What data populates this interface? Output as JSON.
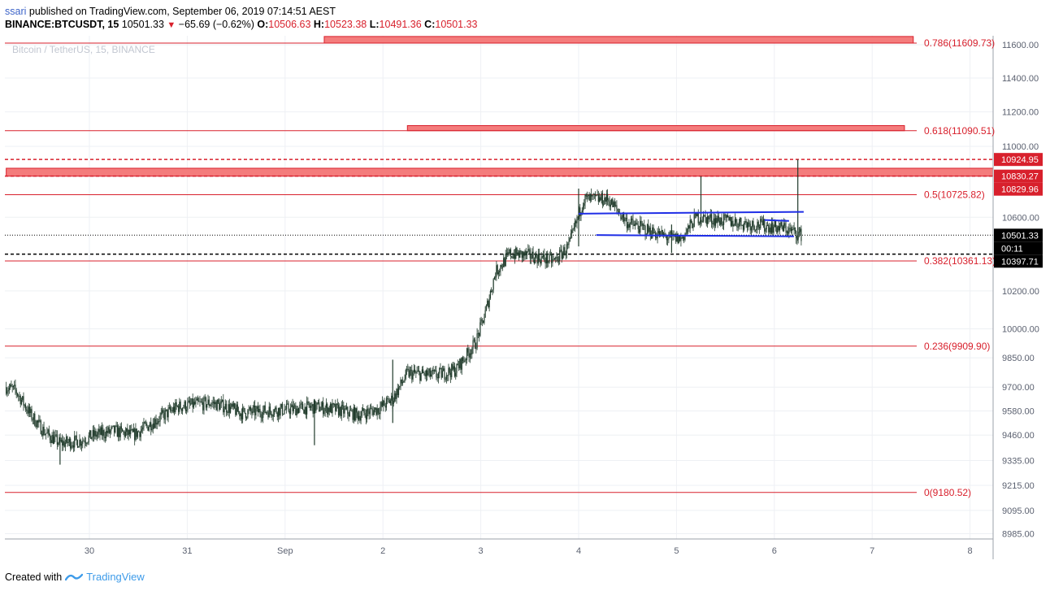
{
  "header": {
    "author": "ssari",
    "published_text": "published on TradingView.com, September 06, 2019 07:14:51 AEST",
    "symbol": "BINANCE:BTCUSDT, 15",
    "last": "10501.33",
    "change": "−65.69 (−0.62%)",
    "o_label": "O:",
    "o_value": "10506.63",
    "h_label": "H:",
    "h_value": "10523.38",
    "l_label": "L:",
    "l_value": "10491.36",
    "c_label": "C:",
    "c_value": "10501.33"
  },
  "watermark": "Bitcoin / TetherUS, 15, BINANCE",
  "footer": {
    "created_with": "Created with",
    "brand": "TradingView"
  },
  "colors": {
    "fib_line": "#d8202c",
    "zone_fill": "#f47c7c",
    "trend_line": "#1f2ee6",
    "candle": "#1f3a2a",
    "axis_text": "#5b6170",
    "grid": "#eef0f4"
  },
  "chart_data": {
    "type": "candlestick",
    "symbol": "BTCUSDT",
    "interval": "15",
    "ylim": [
      8900,
      11680
    ],
    "x_ticks": [
      {
        "label": "30",
        "day": 0
      },
      {
        "label": "31",
        "day": 1
      },
      {
        "label": "Sep",
        "day": 2
      },
      {
        "label": "2",
        "day": 3
      },
      {
        "label": "3",
        "day": 4
      },
      {
        "label": "4",
        "day": 5
      },
      {
        "label": "5",
        "day": 6
      },
      {
        "label": "6",
        "day": 7
      },
      {
        "label": "7",
        "day": 8
      },
      {
        "label": "8",
        "day": 9
      }
    ],
    "y_ticks": [
      11600,
      11400,
      11200,
      11000,
      10600,
      10200,
      10000,
      9850,
      9700,
      9580,
      9460,
      9335,
      9215,
      9095,
      8985
    ],
    "y_tick_labels": [
      "11600.00",
      "11400.00",
      "11200.00",
      "11000.00",
      "10600.00",
      "10200.00",
      "10000.00",
      "9850.00",
      "9700.00",
      "9580.00",
      "9460.00",
      "9335.00",
      "9215.00",
      "9095.00",
      "8985.00"
    ],
    "fib_levels": [
      {
        "label": "0.786(11609.73)",
        "value": 11609.73
      },
      {
        "label": "0.618(11090.51)",
        "value": 11090.51
      },
      {
        "label": "0.5(10725.82)",
        "value": 10725.82
      },
      {
        "label": "0.382(10361.13)",
        "value": 10361.13
      },
      {
        "label": "0.236(9909.90)",
        "value": 9909.9
      },
      {
        "label": "0(9180.52)",
        "value": 9180.52
      }
    ],
    "price_tags": [
      {
        "label": "10924.95",
        "value": 10924.95,
        "bg": "#d8202c"
      },
      {
        "label": "10830.27",
        "value": 10830.27,
        "bg": "#d8202c"
      },
      {
        "label": "10829.96",
        "value": 10829.96,
        "bg": "#d8202c"
      },
      {
        "label": "10501.33",
        "value": 10501.33,
        "bg": "#000000"
      },
      {
        "label": "00:11",
        "value": 10440,
        "bg": "#000000"
      },
      {
        "label": "10397.71",
        "value": 10397.71,
        "bg": "#000000"
      }
    ],
    "dashed_lines": [
      {
        "value": 10924.95,
        "color": "#d8202c"
      },
      {
        "value": 10830.27,
        "color": "#d8202c"
      },
      {
        "value": 10397.71,
        "color": "#000000"
      }
    ],
    "last_price_line": 10501.33,
    "zones": [
      {
        "name": "upper zone",
        "day_from": 2.4,
        "day_to": 8.42,
        "low": 11609.73,
        "high": 11650
      },
      {
        "name": "0.618 zone",
        "day_from": 3.25,
        "day_to": 8.33,
        "low": 11090.51,
        "high": 11120
      },
      {
        "name": "resistance zone",
        "day_from": -0.85,
        "day_to": 9.28,
        "low": 10830,
        "high": 10875
      }
    ],
    "trend_lines": [
      {
        "day1": 5.0,
        "y1": 10620,
        "day2": 7.3,
        "y2": 10630
      },
      {
        "day1": 5.18,
        "y1": 10502,
        "day2": 7.2,
        "y2": 10495
      },
      {
        "day1": 6.9,
        "y1": 10585,
        "day2": 7.15,
        "y2": 10580
      }
    ],
    "anchors": [
      [
        -0.85,
        9700
      ],
      [
        -0.75,
        9680
      ],
      [
        -0.6,
        9560
      ],
      [
        -0.45,
        9470
      ],
      [
        -0.3,
        9420
      ],
      [
        -0.1,
        9430
      ],
      [
        0.05,
        9460
      ],
      [
        0.25,
        9480
      ],
      [
        0.45,
        9460
      ],
      [
        0.7,
        9540
      ],
      [
        0.9,
        9600
      ],
      [
        1.05,
        9610
      ],
      [
        1.25,
        9620
      ],
      [
        1.4,
        9600
      ],
      [
        1.55,
        9570
      ],
      [
        1.8,
        9580
      ],
      [
        2.1,
        9590
      ],
      [
        2.3,
        9600
      ],
      [
        2.5,
        9590
      ],
      [
        2.75,
        9560
      ],
      [
        2.95,
        9590
      ],
      [
        3.1,
        9640
      ],
      [
        3.25,
        9770
      ],
      [
        3.55,
        9760
      ],
      [
        3.75,
        9790
      ],
      [
        3.95,
        9930
      ],
      [
        4.05,
        10090
      ],
      [
        4.15,
        10300
      ],
      [
        4.3,
        10400
      ],
      [
        4.5,
        10390
      ],
      [
        4.75,
        10360
      ],
      [
        4.9,
        10440
      ],
      [
        5.05,
        10700
      ],
      [
        5.3,
        10700
      ],
      [
        5.5,
        10570
      ],
      [
        5.75,
        10520
      ],
      [
        5.9,
        10490
      ],
      [
        6.05,
        10480
      ],
      [
        6.2,
        10600
      ],
      [
        6.5,
        10580
      ],
      [
        6.8,
        10560
      ],
      [
        7.1,
        10540
      ],
      [
        7.28,
        10501
      ]
    ],
    "spikes": [
      {
        "day": 7.24,
        "high": 10924.95,
        "low": 10470
      },
      {
        "day": 6.25,
        "high": 10830,
        "low": 10560
      },
      {
        "day": 5.0,
        "high": 10760,
        "low": 10440
      },
      {
        "day": 5.95,
        "high": 10560,
        "low": 10405
      },
      {
        "day": 3.1,
        "high": 9840,
        "low": 9520
      },
      {
        "day": 2.3,
        "high": 9640,
        "low": 9410
      },
      {
        "day": -0.3,
        "high": 9450,
        "low": 9315
      }
    ]
  }
}
